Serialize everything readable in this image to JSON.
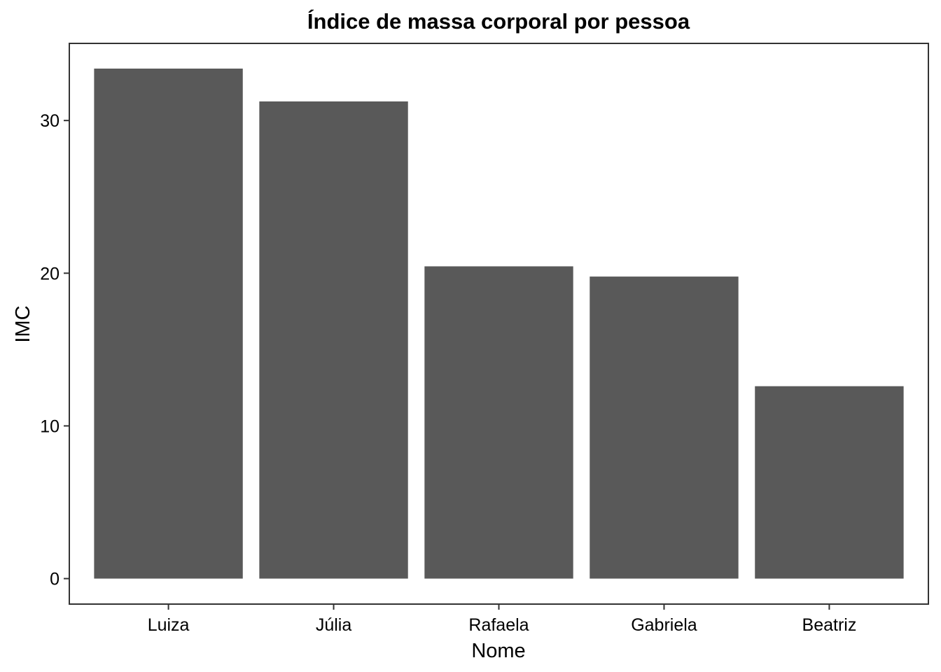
{
  "chart_data": {
    "type": "bar",
    "title": "Índice de massa corporal por pessoa",
    "xlabel": "Nome",
    "ylabel": "IMC",
    "categories": [
      "Luiza",
      "Júlia",
      "Rafaela",
      "Gabriela",
      "Beatriz"
    ],
    "values": [
      33.4,
      31.25,
      20.45,
      19.78,
      12.6
    ],
    "ylim": [
      -1.67,
      35.05
    ],
    "yticks": [
      0,
      10,
      20,
      30
    ],
    "ytick_labels": [
      "0",
      "10",
      "20",
      "30"
    ],
    "grid": false,
    "legend": "none",
    "colors": {
      "bar": "#595959",
      "panel_border": "#333333",
      "ticks": "#333333",
      "text": "#000000",
      "background": "#ffffff"
    }
  }
}
